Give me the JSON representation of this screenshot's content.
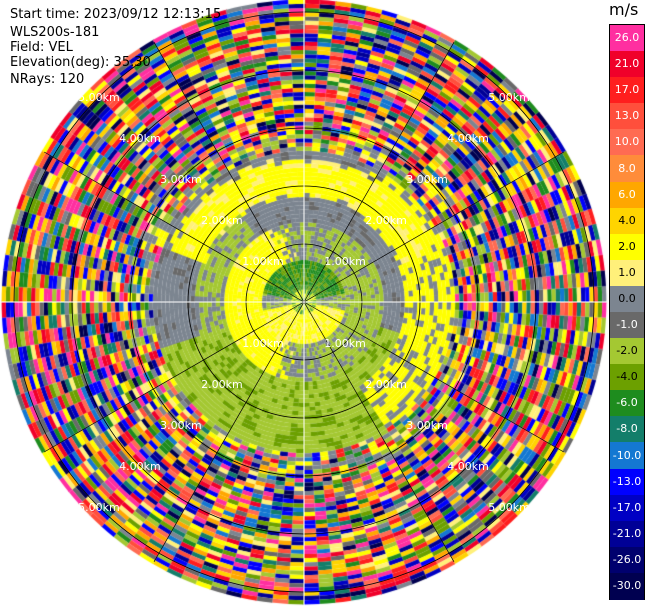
{
  "header": {
    "start_time": "Start time: 2023/09/12 12:13:15",
    "instrument": "WLS200s-181",
    "field": "Field: VEL",
    "elevation": "Elevation(deg): 35.30",
    "nrays": "NRays: 120"
  },
  "colorbar": {
    "unit": "m/s",
    "levels": [
      {
        "label": "26.0",
        "color": "#ff2fa0",
        "light_text": true
      },
      {
        "label": "21.0",
        "color": "#f0002a",
        "light_text": true
      },
      {
        "label": "17.0",
        "color": "#ff1e1e",
        "light_text": true
      },
      {
        "label": "13.0",
        "color": "#ff4f3c",
        "light_text": true
      },
      {
        "label": "10.0",
        "color": "#ff6b52",
        "light_text": true
      },
      {
        "label": "8.0",
        "color": "#ff8c3a",
        "light_text": true
      },
      {
        "label": "6.0",
        "color": "#ffa700",
        "light_text": true
      },
      {
        "label": "4.0",
        "color": "#ffd400",
        "light_text": false
      },
      {
        "label": "2.0",
        "color": "#ffff00",
        "light_text": false
      },
      {
        "label": "1.0",
        "color": "#fff07a",
        "light_text": false
      },
      {
        "label": "0.0",
        "color": "#7c8590",
        "light_text": false
      },
      {
        "label": "-1.0",
        "color": "#696969",
        "light_text": true
      },
      {
        "label": "-2.0",
        "color": "#a4c832",
        "light_text": false
      },
      {
        "label": "-4.0",
        "color": "#6ca000",
        "light_text": false
      },
      {
        "label": "-6.0",
        "color": "#1e8c1e",
        "light_text": true
      },
      {
        "label": "-8.0",
        "color": "#137e6a",
        "light_text": true
      },
      {
        "label": "-10.0",
        "color": "#1478d2",
        "light_text": true
      },
      {
        "label": "-13.0",
        "color": "#0000ff",
        "light_text": true
      },
      {
        "label": "-17.0",
        "color": "#0000c4",
        "light_text": true
      },
      {
        "label": "-21.0",
        "color": "#000096",
        "light_text": true
      },
      {
        "label": "-26.0",
        "color": "#00006e",
        "light_text": true
      },
      {
        "label": "-30.0",
        "color": "#000050",
        "light_text": true
      }
    ]
  },
  "range_rings": {
    "labels": [
      "1.00km",
      "2.00km",
      "3.00km",
      "4.00km",
      "5.00km"
    ]
  }
}
